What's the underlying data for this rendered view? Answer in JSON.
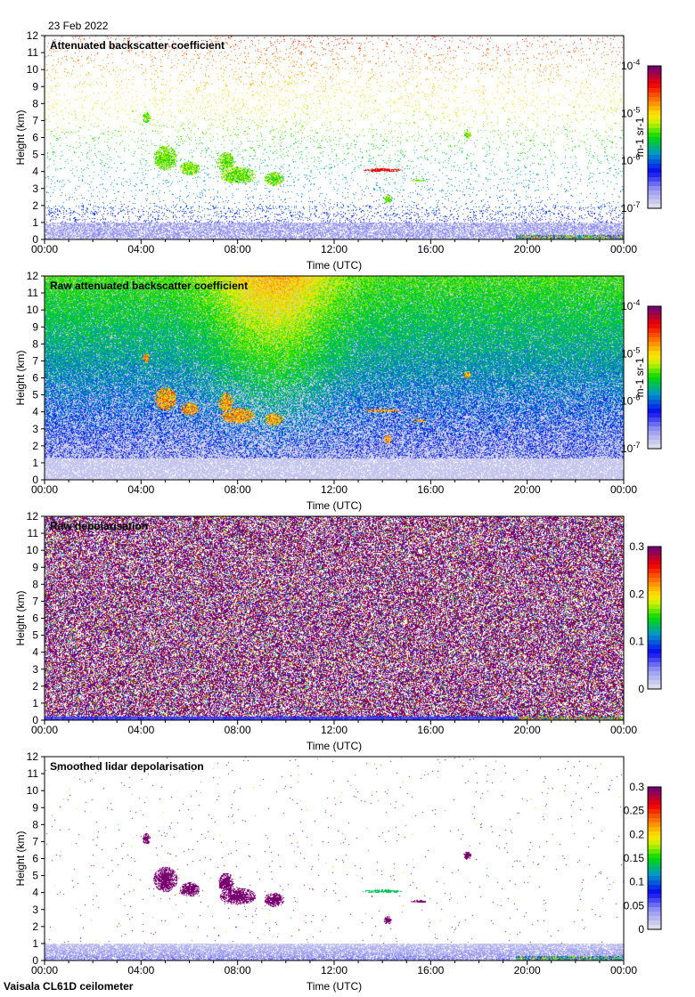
{
  "header": {
    "date": "23 Feb 2022"
  },
  "footer": {
    "instrument": "Vaisala CL61D ceilometer"
  },
  "chart_data": [
    {
      "type": "heatmap",
      "title": "Attenuated backscatter coefficient",
      "xlabel": "Time (UTC)",
      "ylabel": "Height (km)",
      "xlim": [
        0,
        24
      ],
      "ylim": [
        0,
        12
      ],
      "xticks": [
        "00:00",
        "04:00",
        "08:00",
        "12:00",
        "16:00",
        "20:00",
        "00:00"
      ],
      "yticks": [
        "0",
        "1",
        "2",
        "3",
        "4",
        "5",
        "6",
        "7",
        "8",
        "9",
        "10",
        "11",
        "12"
      ],
      "colorbar": {
        "scale": "log",
        "range": [
          1e-07,
          0.0001
        ],
        "unit_label": "m-1 sr-1",
        "ticks": [
          {
            "base": "10",
            "exp": "-4"
          },
          {
            "base": "10",
            "exp": "-5"
          },
          {
            "base": "10",
            "exp": "-6"
          },
          {
            "base": "10",
            "exp": "-7"
          }
        ]
      }
    },
    {
      "type": "heatmap",
      "title": "Raw attenuated backscatter coefficient",
      "xlabel": "Time (UTC)",
      "ylabel": "Height (km)",
      "xlim": [
        0,
        24
      ],
      "ylim": [
        0,
        12
      ],
      "xticks": [
        "00:00",
        "04:00",
        "08:00",
        "12:00",
        "16:00",
        "20:00",
        "00:00"
      ],
      "yticks": [
        "0",
        "1",
        "2",
        "3",
        "4",
        "5",
        "6",
        "7",
        "8",
        "9",
        "10",
        "11",
        "12"
      ],
      "colorbar": {
        "scale": "log",
        "range": [
          1e-07,
          0.0001
        ],
        "unit_label": "m-1 sr-1",
        "ticks": [
          {
            "base": "10",
            "exp": "-4"
          },
          {
            "base": "10",
            "exp": "-5"
          },
          {
            "base": "10",
            "exp": "-6"
          },
          {
            "base": "10",
            "exp": "-7"
          }
        ]
      }
    },
    {
      "type": "heatmap",
      "title": "Raw depolarisation",
      "xlabel": "Time (UTC)",
      "ylabel": "Height (km)",
      "xlim": [
        0,
        24
      ],
      "ylim": [
        0,
        12
      ],
      "xticks": [
        "00:00",
        "04:00",
        "08:00",
        "12:00",
        "16:00",
        "20:00",
        "00:00"
      ],
      "yticks": [
        "0",
        "1",
        "2",
        "3",
        "4",
        "5",
        "6",
        "7",
        "8",
        "9",
        "10",
        "11",
        "12"
      ],
      "colorbar": {
        "scale": "linear",
        "range": [
          0,
          0.3
        ],
        "unit_label": "",
        "ticks": [
          {
            "base": "0.3"
          },
          {
            "base": "0.2"
          },
          {
            "base": "0.1"
          },
          {
            "base": "0"
          }
        ]
      }
    },
    {
      "type": "heatmap",
      "title": "Smoothed lidar depolarisation",
      "xlabel": "Time (UTC)",
      "ylabel": "Height (km)",
      "xlim": [
        0,
        24
      ],
      "ylim": [
        0,
        12
      ],
      "xticks": [
        "00:00",
        "04:00",
        "08:00",
        "12:00",
        "16:00",
        "20:00",
        "00:00"
      ],
      "yticks": [
        "0",
        "1",
        "2",
        "3",
        "4",
        "5",
        "6",
        "7",
        "8",
        "9",
        "10",
        "11",
        "12"
      ],
      "colorbar": {
        "scale": "linear",
        "range": [
          0,
          0.3
        ],
        "unit_label": "",
        "ticks": [
          {
            "base": "0.3"
          },
          {
            "base": "0.25"
          },
          {
            "base": "0.2"
          },
          {
            "base": "0.15"
          },
          {
            "base": "0.1"
          },
          {
            "base": "0.05"
          },
          {
            "base": "0"
          }
        ]
      }
    }
  ]
}
